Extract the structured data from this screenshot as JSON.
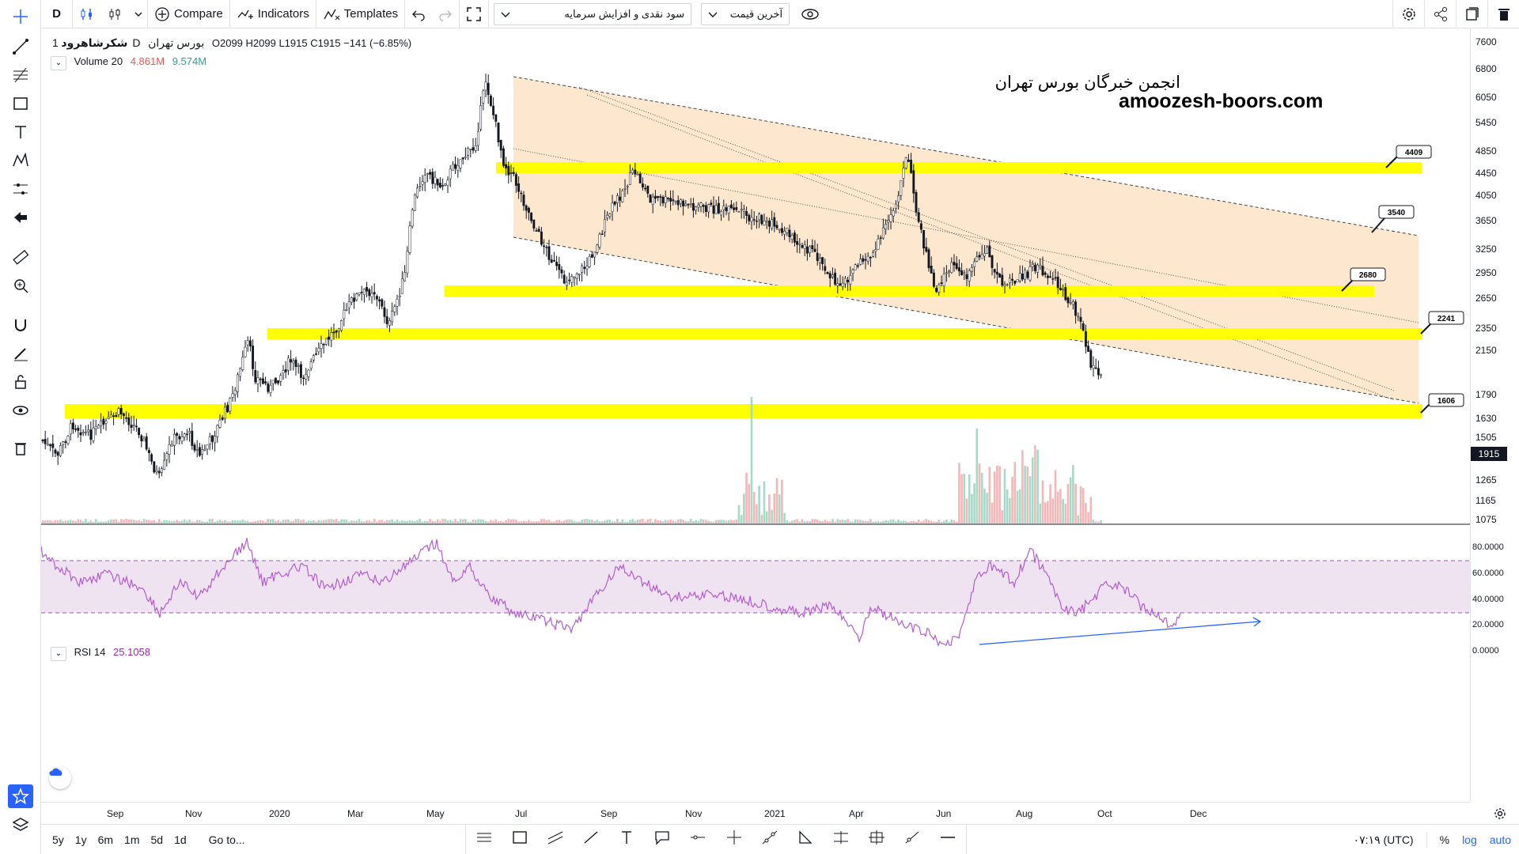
{
  "toolbar": {
    "interval": "D",
    "compare_label": "Compare",
    "indicators_label": "Indicators",
    "templates_label": "Templates",
    "select1": "سود نقدی و افزایش سرمایه",
    "select2": "آخرین قیمت"
  },
  "legend": {
    "symbol": "شکرشاهرود",
    "interval": "1D",
    "exchange": "بورس تهران",
    "ohlc": "O2099  H2099  L1915  C1915  −141 (−6.85%)",
    "volume_label": "Volume 20",
    "volume_val1": "4.861M",
    "volume_val2": "9.574M",
    "rsi_label": "RSI 14",
    "rsi_val": "25.1058"
  },
  "watermark": {
    "line1": "انجمن خبرگان بورس تهران",
    "line2": "amoozesh-boors.com"
  },
  "price_axis": [
    "7600",
    "6800",
    "6050",
    "5450",
    "4850",
    "4450",
    "4050",
    "3650",
    "3250",
    "2950",
    "2650",
    "2350",
    "2150",
    "1915",
    "1790",
    "1630",
    "1505",
    "1385",
    "1265",
    "1165",
    "1075"
  ],
  "current_price": "1915",
  "rsi_axis": [
    "80.0000",
    "60.0000",
    "40.0000",
    "20.0000",
    "0.0000"
  ],
  "time_axis": [
    "Sep",
    "Nov",
    "2020",
    "Mar",
    "May",
    "Jul",
    "Sep",
    "Nov",
    "2021",
    "Apr",
    "Jun",
    "Aug",
    "Oct",
    "Dec"
  ],
  "callouts": [
    "4409",
    "3540",
    "2680",
    "2241",
    "1606"
  ],
  "ranges": [
    "5y",
    "1y",
    "6m",
    "1m",
    "5d",
    "1d"
  ],
  "goto_label": "Go to...",
  "time_display": "۰۷:۱۹ (UTC)",
  "percent_label": "%",
  "log_label": "log",
  "auto_label": "auto",
  "colors": {
    "accent": "#2962ff",
    "zone_fill": "#fde8cf",
    "support_band": "#ffff00",
    "rsi_line": "#b45ad6",
    "rsi_band": "#efe3f1",
    "volume_up": "#a6d9c6",
    "volume_down": "#f4b6b6"
  },
  "chart_data": {
    "type": "candlestick",
    "support_levels": [
      4409,
      2680,
      2241,
      1606
    ],
    "callout_levels": [
      4409,
      3540,
      2680,
      2241,
      1606
    ],
    "last_close": 1915,
    "rsi_last": 25.1058,
    "rsi_bands": [
      70,
      30
    ]
  }
}
